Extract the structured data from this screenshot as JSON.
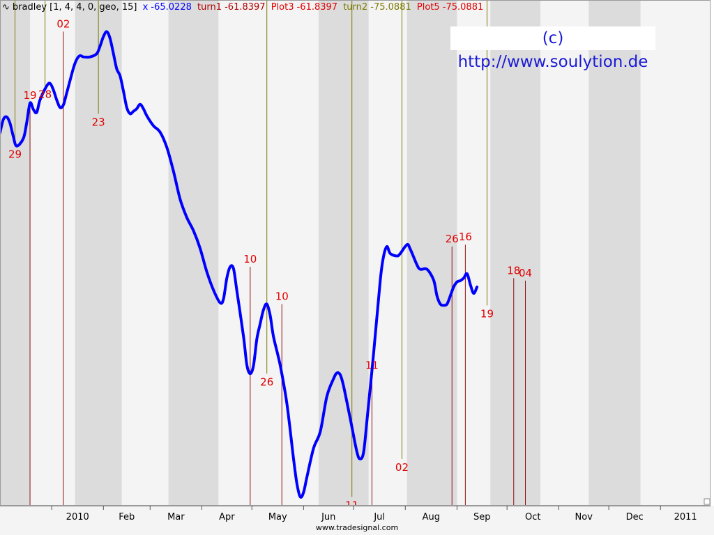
{
  "legend": {
    "icon": "wave-icon",
    "title": "bradley [1, 4, 4, 0, geo, 15]",
    "items": [
      {
        "label": "x -65.0228",
        "color": "#0000ff"
      },
      {
        "label": "turn1 -61.8397",
        "color": "#b00000"
      },
      {
        "label": "Plot3 -61.8397",
        "color": "#e00000"
      },
      {
        "label": "turn2 -75.0881",
        "color": "#7a7a00"
      },
      {
        "label": "Plot5 -75.0881",
        "color": "#e00000"
      }
    ]
  },
  "watermark": "(c) http://www.soulytion.de",
  "footer": "www.tradesignal.com",
  "colors": {
    "line": "#0000ff",
    "turn_low": "#8b1010",
    "turn_high": "#7a7a00",
    "label": "#e00000",
    "band": "#dcdcdc",
    "plot_bg": "#f4f4f4"
  },
  "chart_data": {
    "type": "line",
    "title": "bradley [1, 4, 4, 0, geo, 15]",
    "x_range": [
      "2009-12-01",
      "2011-01-31"
    ],
    "y_range": [
      -100,
      -20
    ],
    "grid": false,
    "x_ticks": [
      {
        "date": "2010-01-01",
        "label": "2010"
      },
      {
        "date": "2010-02-01",
        "label": "Feb"
      },
      {
        "date": "2010-03-01",
        "label": "Mar"
      },
      {
        "date": "2010-04-01",
        "label": "Apr"
      },
      {
        "date": "2010-05-01",
        "label": "May"
      },
      {
        "date": "2010-06-01",
        "label": "Jun"
      },
      {
        "date": "2010-07-01",
        "label": "Jul"
      },
      {
        "date": "2010-08-01",
        "label": "Aug"
      },
      {
        "date": "2010-09-01",
        "label": "Sep"
      },
      {
        "date": "2010-10-01",
        "label": "Oct"
      },
      {
        "date": "2010-11-01",
        "label": "Nov"
      },
      {
        "date": "2010-12-01",
        "label": "Dec"
      },
      {
        "date": "2011-01-01",
        "label": "2011"
      }
    ],
    "shaded_bands": [
      [
        "2009-12-01",
        "2009-12-19"
      ],
      [
        "2010-01-15",
        "2010-02-12"
      ],
      [
        "2010-03-12",
        "2010-04-11"
      ],
      [
        "2010-06-10",
        "2010-07-10"
      ],
      [
        "2010-08-02",
        "2010-09-01"
      ],
      [
        "2010-09-21",
        "2010-10-21"
      ],
      [
        "2010-11-19",
        "2010-12-20"
      ]
    ],
    "series": [
      {
        "name": "x",
        "points": [
          [
            "2009-12-01",
            -41.0
          ],
          [
            "2009-12-03",
            -38.9
          ],
          [
            "2009-12-05",
            -38.5
          ],
          [
            "2009-12-07",
            -39.5
          ],
          [
            "2009-12-09",
            -41.6
          ],
          [
            "2009-12-11",
            -43.1
          ],
          [
            "2009-12-15",
            -41.9
          ],
          [
            "2009-12-17",
            -39.4
          ],
          [
            "2009-12-19",
            -36.3
          ],
          [
            "2009-12-21",
            -37.3
          ],
          [
            "2009-12-23",
            -37.8
          ],
          [
            "2009-12-25",
            -35.8
          ],
          [
            "2009-12-29",
            -33.6
          ],
          [
            "2009-12-31",
            -33.2
          ],
          [
            "2010-01-02",
            -34.2
          ],
          [
            "2010-01-04",
            -35.8
          ],
          [
            "2010-01-06",
            -37.0
          ],
          [
            "2010-01-08",
            -36.6
          ],
          [
            "2010-01-10",
            -34.7
          ],
          [
            "2010-01-14",
            -30.8
          ],
          [
            "2010-01-16",
            -29.4
          ],
          [
            "2010-01-18",
            -28.8
          ],
          [
            "2010-01-20",
            -29.0
          ],
          [
            "2010-01-24",
            -29.0
          ],
          [
            "2010-01-28",
            -28.5
          ],
          [
            "2010-01-30",
            -27.3
          ],
          [
            "2010-02-01",
            -25.8
          ],
          [
            "2010-02-03",
            -25.0
          ],
          [
            "2010-02-05",
            -26.1
          ],
          [
            "2010-02-07",
            -28.5
          ],
          [
            "2010-02-09",
            -30.9
          ],
          [
            "2010-02-11",
            -32.0
          ],
          [
            "2010-02-13",
            -34.4
          ],
          [
            "2010-02-15",
            -37.0
          ],
          [
            "2010-02-17",
            -38.0
          ],
          [
            "2010-02-19",
            -37.6
          ],
          [
            "2010-02-21",
            -37.2
          ],
          [
            "2010-02-23",
            -36.5
          ],
          [
            "2010-02-25",
            -37.2
          ],
          [
            "2010-02-27",
            -38.3
          ],
          [
            "2010-03-03",
            -39.9
          ],
          [
            "2010-03-07",
            -40.9
          ],
          [
            "2010-03-11",
            -43.3
          ],
          [
            "2010-03-15",
            -47.1
          ],
          [
            "2010-03-19",
            -51.5
          ],
          [
            "2010-03-23",
            -54.4
          ],
          [
            "2010-03-27",
            -56.5
          ],
          [
            "2010-03-31",
            -59.3
          ],
          [
            "2010-04-04",
            -63.0
          ],
          [
            "2010-04-08",
            -65.9
          ],
          [
            "2010-04-12",
            -67.9
          ],
          [
            "2010-04-14",
            -67.3
          ],
          [
            "2010-04-16",
            -64.0
          ],
          [
            "2010-04-18",
            -62.2
          ],
          [
            "2010-04-20",
            -62.5
          ],
          [
            "2010-04-22",
            -66.0
          ],
          [
            "2010-04-26",
            -73.2
          ],
          [
            "2010-04-28",
            -77.7
          ],
          [
            "2010-04-30",
            -79.1
          ],
          [
            "2010-05-02",
            -77.8
          ],
          [
            "2010-05-04",
            -73.6
          ],
          [
            "2010-05-06",
            -71.2
          ],
          [
            "2010-05-08",
            -69.0
          ],
          [
            "2010-05-10",
            -68.1
          ],
          [
            "2010-05-12",
            -69.9
          ],
          [
            "2010-05-14",
            -73.3
          ],
          [
            "2010-05-18",
            -77.8
          ],
          [
            "2010-05-22",
            -83.8
          ],
          [
            "2010-05-26",
            -92.6
          ],
          [
            "2010-05-28",
            -96.5
          ],
          [
            "2010-05-30",
            -98.6
          ],
          [
            "2010-06-01",
            -97.9
          ],
          [
            "2010-06-03",
            -95.5
          ],
          [
            "2010-06-07",
            -90.9
          ],
          [
            "2010-06-11",
            -88.3
          ],
          [
            "2010-06-15",
            -82.7
          ],
          [
            "2010-06-19",
            -79.9
          ],
          [
            "2010-06-21",
            -79.0
          ],
          [
            "2010-06-23",
            -79.3
          ],
          [
            "2010-06-25",
            -81.1
          ],
          [
            "2010-06-29",
            -86.2
          ],
          [
            "2010-07-03",
            -91.5
          ],
          [
            "2010-07-05",
            -92.6
          ],
          [
            "2010-07-07",
            -91.5
          ],
          [
            "2010-07-09",
            -86.6
          ],
          [
            "2010-07-13",
            -75.9
          ],
          [
            "2010-07-17",
            -64.3
          ],
          [
            "2010-07-19",
            -60.5
          ],
          [
            "2010-07-21",
            -59.0
          ],
          [
            "2010-07-23",
            -60.1
          ],
          [
            "2010-07-27",
            -60.5
          ],
          [
            "2010-07-29",
            -60.1
          ],
          [
            "2010-08-02",
            -58.7
          ],
          [
            "2010-08-04",
            -59.4
          ],
          [
            "2010-08-08",
            -61.9
          ],
          [
            "2010-08-10",
            -62.6
          ],
          [
            "2010-08-14",
            -62.6
          ],
          [
            "2010-08-18",
            -64.3
          ],
          [
            "2010-08-20",
            -66.8
          ],
          [
            "2010-08-22",
            -68.1
          ],
          [
            "2010-08-24",
            -68.3
          ],
          [
            "2010-08-26",
            -68.1
          ],
          [
            "2010-08-28",
            -66.8
          ],
          [
            "2010-08-30",
            -65.4
          ],
          [
            "2010-09-01",
            -64.6
          ],
          [
            "2010-09-03",
            -64.4
          ],
          [
            "2010-09-05",
            -64.0
          ],
          [
            "2010-09-07",
            -63.3
          ],
          [
            "2010-09-09",
            -65.0
          ],
          [
            "2010-09-11",
            -66.4
          ],
          [
            "2010-09-13",
            -65.4
          ]
        ]
      }
    ],
    "turning_points": [
      {
        "date": "2009-12-10",
        "label": "29",
        "kind": "low",
        "value": -43.1
      },
      {
        "date": "2009-12-19",
        "label": "19",
        "kind": "high",
        "value": -36.3
      },
      {
        "date": "2009-12-28",
        "label": "28",
        "kind": "low",
        "value": -33.6
      },
      {
        "date": "2010-01-08",
        "label": "02",
        "kind": "high",
        "value": -25.0
      },
      {
        "date": "2010-01-29",
        "label": "23",
        "kind": "low",
        "value": -38.0
      },
      {
        "date": "2010-04-30",
        "label": "10",
        "kind": "high",
        "value": -62.2
      },
      {
        "date": "2010-05-10",
        "label": "26",
        "kind": "low",
        "value": -79.1
      },
      {
        "date": "2010-05-19",
        "label": "10",
        "kind": "high",
        "value": -68.1
      },
      {
        "date": "2010-06-30",
        "label": "11",
        "kind": "low",
        "value": -98.6
      },
      {
        "date": "2010-07-12",
        "label": "11",
        "kind": "high",
        "value": -79.0
      },
      {
        "date": "2010-07-30",
        "label": "02",
        "kind": "low",
        "value": -92.6
      },
      {
        "date": "2010-08-29",
        "label": "26",
        "kind": "high",
        "value": -59.0
      },
      {
        "date": "2010-09-06",
        "label": "16",
        "kind": "high",
        "value": -58.7
      },
      {
        "date": "2010-09-19",
        "label": "19",
        "kind": "low",
        "value": -68.3
      },
      {
        "date": "2010-10-05",
        "label": "18",
        "kind": "high",
        "value": -64.0
      },
      {
        "date": "2010-10-12",
        "label": "04",
        "kind": "high",
        "value": -64.4
      }
    ]
  }
}
